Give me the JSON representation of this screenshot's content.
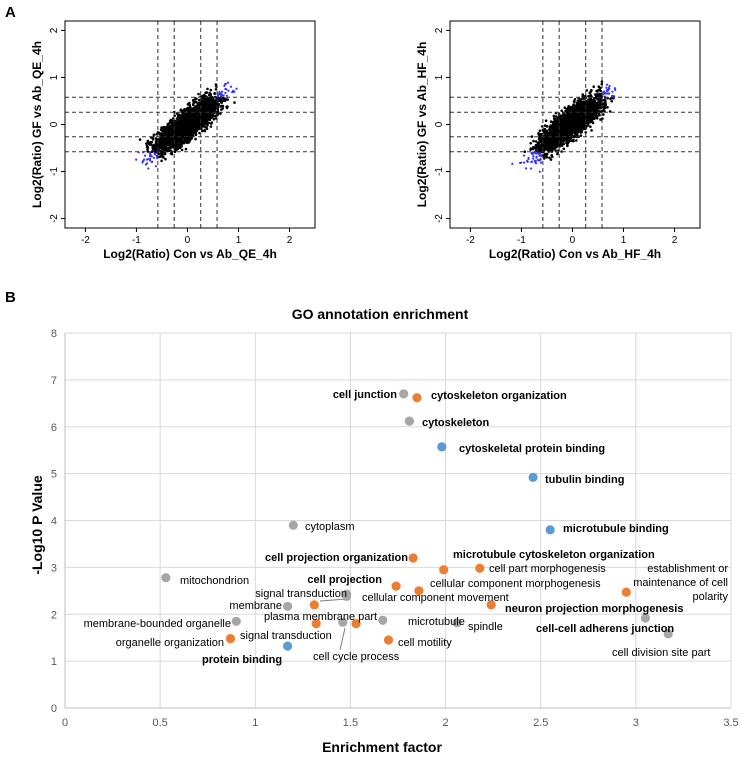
{
  "panel_letters": {
    "a": "A",
    "b": "B"
  },
  "colors": {
    "scatter_black": "#000000",
    "scatter_blue": "#3333ff",
    "grey_point": "#a6a6a6",
    "orange_point": "#ed7d31",
    "blue_point": "#5b9bd5",
    "grid": "#d9d9d9",
    "dashed": "#333333"
  },
  "chart_data": [
    {
      "type": "scatter",
      "title": "",
      "xlabel": "Log2(Ratio) Con vs Ab_QE_4h",
      "ylabel": "Log2(Ratio) GF vs Ab_QE_4h",
      "xlim": [
        -2.4,
        2.5
      ],
      "ylim": [
        -2.2,
        2.2
      ],
      "x_ticks": [
        "-2",
        "-1",
        "0",
        "1",
        "2"
      ],
      "y_ticks": [
        "-2",
        "-1",
        "0",
        "1",
        "2"
      ],
      "threshold_lines": [
        -0.58,
        -0.26,
        0.26,
        0.58
      ],
      "point_series": [
        {
          "name": "not significant",
          "color": "black"
        },
        {
          "name": "significant",
          "color": "blue"
        }
      ]
    },
    {
      "type": "scatter",
      "title": "",
      "xlabel": "Log2(Ratio) Con vs Ab_HF_4h",
      "ylabel": "Log2(Ratio) GF vs Ab_HF_4h",
      "xlim": [
        -2.4,
        2.5
      ],
      "ylim": [
        -2.2,
        2.2
      ],
      "x_ticks": [
        "-2",
        "-1",
        "0",
        "1",
        "2"
      ],
      "y_ticks": [
        "-2",
        "-1",
        "0",
        "1",
        "2"
      ],
      "threshold_lines": [
        -0.58,
        -0.26,
        0.26,
        0.58
      ],
      "point_series": [
        {
          "name": "not significant",
          "color": "black"
        },
        {
          "name": "significant",
          "color": "blue"
        }
      ]
    },
    {
      "type": "scatter",
      "title": "GO annotation enrichment",
      "xlabel": "Enrichment  factor",
      "ylabel": "-Log10 P Value",
      "xlim": [
        0,
        3.5
      ],
      "ylim": [
        0,
        8
      ],
      "x_ticks": [
        "0",
        "0.5",
        "1",
        "1.5",
        "2",
        "2.5",
        "3",
        "3.5"
      ],
      "y_ticks": [
        "0",
        "1",
        "2",
        "3",
        "4",
        "5",
        "6",
        "7",
        "8"
      ],
      "grid": true,
      "points": [
        {
          "label": "cell junction",
          "x": 1.78,
          "y": 6.7,
          "color": "grey",
          "bold": true
        },
        {
          "label": "cytoskeleton organization",
          "x": 1.85,
          "y": 6.62,
          "color": "orange",
          "bold": true
        },
        {
          "label": "cytoskeleton",
          "x": 1.81,
          "y": 6.12,
          "color": "grey",
          "bold": true
        },
        {
          "label": "cytoskeletal protein binding",
          "x": 1.98,
          "y": 5.57,
          "color": "blue",
          "bold": true
        },
        {
          "label": "tubulin binding",
          "x": 2.46,
          "y": 4.92,
          "color": "blue",
          "bold": true
        },
        {
          "label": "cytoplasm",
          "x": 1.2,
          "y": 3.9,
          "color": "grey",
          "bold": false
        },
        {
          "label": "microtubule binding",
          "x": 2.55,
          "y": 3.8,
          "color": "blue",
          "bold": true
        },
        {
          "label": "cell projection  organization",
          "x": 1.83,
          "y": 3.2,
          "color": "orange",
          "bold": true
        },
        {
          "label": "microtubule cytoskeleton organization",
          "x": 1.99,
          "y": 2.95,
          "color": "orange",
          "bold": true
        },
        {
          "label": "mitochondrion",
          "x": 0.53,
          "y": 2.78,
          "color": "grey",
          "bold": false
        },
        {
          "label": "cell part morphogenesis",
          "x": 2.18,
          "y": 2.98,
          "color": "orange",
          "bold": false
        },
        {
          "label": "cell projection",
          "x": 1.74,
          "y": 2.6,
          "color": "orange",
          "bold": true
        },
        {
          "label": "cellular component morphogenesis",
          "x": 1.86,
          "y": 2.5,
          "color": "orange",
          "bold": false
        },
        {
          "label": "signal transduction",
          "x": 1.48,
          "y": 2.43,
          "color": "grey",
          "bold": false
        },
        {
          "label": "cellular component movement",
          "x": 1.48,
          "y": 2.38,
          "color": "grey",
          "bold": false
        },
        {
          "label": "establishment or maintenance of cell polarity",
          "x": 2.95,
          "y": 2.47,
          "color": "orange",
          "bold": false
        },
        {
          "label": "membrane",
          "x": 1.17,
          "y": 2.17,
          "color": "grey",
          "bold": false
        },
        {
          "label": "plasma membrane part",
          "x": 1.31,
          "y": 2.2,
          "color": "orange",
          "bold": false
        },
        {
          "label": "neuron projection morphogenesis",
          "x": 2.24,
          "y": 2.2,
          "color": "orange",
          "bold": true
        },
        {
          "label": "membrane-bounded organelle",
          "x": 0.9,
          "y": 1.85,
          "color": "grey",
          "bold": false
        },
        {
          "label": "microtubule",
          "x": 1.67,
          "y": 1.87,
          "color": "grey",
          "bold": false
        },
        {
          "label": "spindle",
          "x": 2.06,
          "y": 1.82,
          "color": "grey",
          "bold": false
        },
        {
          "label": "cell-cell adherens junction",
          "x": 3.05,
          "y": 1.92,
          "color": "grey",
          "bold": true
        },
        {
          "label": "signal transduction",
          "x": 1.32,
          "y": 1.8,
          "color": "orange",
          "bold": false
        },
        {
          "label": "cell cycle  process",
          "x": 1.46,
          "y": 1.83,
          "color": "grey",
          "bold": false
        },
        {
          "label": "cell cycle  process",
          "x": 1.53,
          "y": 1.8,
          "color": "orange",
          "bold": false
        },
        {
          "label": "organelle organization",
          "x": 0.87,
          "y": 1.48,
          "color": "orange",
          "bold": false
        },
        {
          "label": "cell motility",
          "x": 1.7,
          "y": 1.45,
          "color": "orange",
          "bold": false
        },
        {
          "label": "cell division site part",
          "x": 3.17,
          "y": 1.58,
          "color": "grey",
          "bold": false
        },
        {
          "label": "protein binding",
          "x": 1.17,
          "y": 1.32,
          "color": "blue",
          "bold": true
        }
      ]
    }
  ]
}
